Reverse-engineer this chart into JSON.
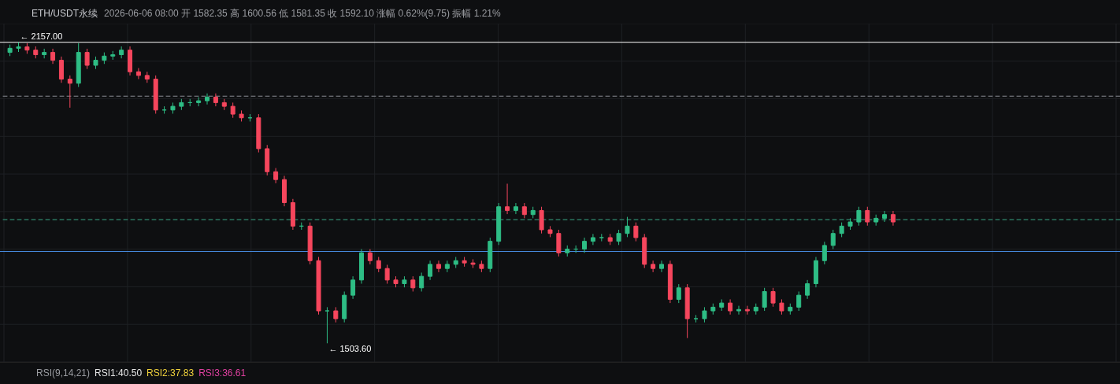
{
  "chart_data": {
    "type": "candlestick",
    "title": "ETH/USDT永续",
    "subtitle": "2026-06-06 08:00 开 1582.35 高 1600.56 低 1581.35 收 1592.10 涨幅 0.62%(9.75) 振幅 1.21%",
    "categories": [
      null,
      null,
      null,
      null,
      null,
      null,
      null,
      null,
      null,
      null,
      null,
      null,
      null,
      null,
      null,
      null,
      null,
      null,
      null,
      null,
      null,
      null,
      null,
      null,
      null,
      null,
      null,
      null,
      null,
      null,
      null,
      null,
      null,
      null,
      null,
      null,
      null,
      null,
      null,
      null,
      null,
      null,
      null,
      null,
      null,
      null,
      null,
      null,
      null,
      null,
      null,
      null,
      null,
      null,
      null,
      null,
      null,
      null,
      null,
      null,
      null,
      null,
      null,
      null,
      null,
      null,
      null,
      null,
      null,
      null,
      null,
      null,
      null,
      null,
      null,
      null,
      null,
      null,
      null,
      null,
      null,
      null,
      null,
      null,
      null,
      null,
      null,
      null,
      null,
      null,
      null,
      null,
      null,
      null,
      null,
      null,
      null,
      null,
      null,
      null,
      null,
      null,
      null,
      null
    ],
    "ohlc": [
      [
        2135,
        2152,
        2127,
        2144
      ],
      [
        2144,
        2157,
        2136,
        2147
      ],
      [
        2147,
        2155,
        2132,
        2140
      ],
      [
        2140,
        2148,
        2122,
        2130
      ],
      [
        2130,
        2143,
        2122,
        2135
      ],
      [
        2135,
        2143,
        2110,
        2118
      ],
      [
        2118,
        2126,
        2069,
        2077
      ],
      [
        2077,
        2085,
        2015,
        2068
      ],
      [
        2068,
        2155,
        2060,
        2135
      ],
      [
        2135,
        2143,
        2099,
        2107
      ],
      [
        2107,
        2126,
        2099,
        2118
      ],
      [
        2118,
        2135,
        2110,
        2127
      ],
      [
        2127,
        2138,
        2119,
        2130
      ],
      [
        2130,
        2148,
        2122,
        2140
      ],
      [
        2140,
        2148,
        2085,
        2093
      ],
      [
        2093,
        2101,
        2077,
        2085
      ],
      [
        2085,
        2093,
        2069,
        2077
      ],
      [
        2077,
        2085,
        2002,
        2010
      ],
      [
        2010,
        2018,
        2002,
        2010
      ],
      [
        2010,
        2026,
        2002,
        2018
      ],
      [
        2018,
        2034,
        2010,
        2026
      ],
      [
        2026,
        2034,
        2018,
        2026
      ],
      [
        2026,
        2038,
        2018,
        2030
      ],
      [
        2030,
        2046,
        2022,
        2038
      ],
      [
        2038,
        2046,
        2018,
        2026
      ],
      [
        2026,
        2034,
        2010,
        2018
      ],
      [
        2018,
        2026,
        1993,
        2001
      ],
      [
        2001,
        2009,
        1985,
        1993
      ],
      [
        1993,
        2001,
        1985,
        1993
      ],
      [
        1993,
        2001,
        1918,
        1926
      ],
      [
        1926,
        1934,
        1868,
        1876
      ],
      [
        1876,
        1884,
        1851,
        1859
      ],
      [
        1859,
        1867,
        1801,
        1809
      ],
      [
        1809,
        1817,
        1750,
        1758
      ],
      [
        1758,
        1766,
        1750,
        1758
      ],
      [
        1758,
        1766,
        1675,
        1683
      ],
      [
        1683,
        1691,
        1566,
        1574
      ],
      [
        1574,
        1582,
        1503.6,
        1574
      ],
      [
        1574,
        1582,
        1549,
        1557
      ],
      [
        1557,
        1616,
        1549,
        1608
      ],
      [
        1608,
        1649,
        1600,
        1641
      ],
      [
        1641,
        1708,
        1633,
        1700
      ],
      [
        1700,
        1708,
        1675,
        1683
      ],
      [
        1683,
        1691,
        1658,
        1666
      ],
      [
        1666,
        1674,
        1633,
        1641
      ],
      [
        1641,
        1649,
        1625,
        1633
      ],
      [
        1633,
        1649,
        1625,
        1641
      ],
      [
        1641,
        1649,
        1616,
        1624
      ],
      [
        1624,
        1657,
        1616,
        1649
      ],
      [
        1649,
        1683,
        1641,
        1675
      ],
      [
        1675,
        1683,
        1658,
        1666
      ],
      [
        1666,
        1683,
        1658,
        1675
      ],
      [
        1675,
        1691,
        1667,
        1683
      ],
      [
        1683,
        1691,
        1670,
        1678
      ],
      [
        1678,
        1686,
        1667,
        1675
      ],
      [
        1675,
        1683,
        1658,
        1666
      ],
      [
        1666,
        1733,
        1658,
        1725
      ],
      [
        1725,
        1808,
        1717,
        1800
      ],
      [
        1800,
        1850,
        1784,
        1792
      ],
      [
        1792,
        1808,
        1784,
        1800
      ],
      [
        1800,
        1808,
        1775,
        1783
      ],
      [
        1783,
        1800,
        1775,
        1792
      ],
      [
        1792,
        1800,
        1742,
        1750
      ],
      [
        1750,
        1758,
        1734,
        1742
      ],
      [
        1742,
        1750,
        1692,
        1700
      ],
      [
        1700,
        1716,
        1692,
        1708
      ],
      [
        1708,
        1716,
        1700,
        1708
      ],
      [
        1708,
        1733,
        1700,
        1725
      ],
      [
        1725,
        1741,
        1717,
        1733
      ],
      [
        1733,
        1741,
        1725,
        1733
      ],
      [
        1733,
        1741,
        1717,
        1725
      ],
      [
        1725,
        1750,
        1717,
        1742
      ],
      [
        1742,
        1778,
        1734,
        1758
      ],
      [
        1758,
        1766,
        1725,
        1733
      ],
      [
        1733,
        1741,
        1667,
        1675
      ],
      [
        1675,
        1683,
        1658,
        1666
      ],
      [
        1666,
        1683,
        1658,
        1675
      ],
      [
        1675,
        1683,
        1591,
        1599
      ],
      [
        1599,
        1632,
        1591,
        1624
      ],
      [
        1624,
        1632,
        1515,
        1557
      ],
      [
        1557,
        1565,
        1549,
        1557
      ],
      [
        1557,
        1582,
        1549,
        1574
      ],
      [
        1574,
        1590,
        1566,
        1582
      ],
      [
        1582,
        1599,
        1574,
        1591
      ],
      [
        1591,
        1599,
        1566,
        1574
      ],
      [
        1574,
        1585,
        1566,
        1577
      ],
      [
        1577,
        1585,
        1566,
        1574
      ],
      [
        1574,
        1590,
        1566,
        1582
      ],
      [
        1582,
        1624,
        1574,
        1616
      ],
      [
        1616,
        1624,
        1583,
        1591
      ],
      [
        1591,
        1599,
        1566,
        1574
      ],
      [
        1574,
        1590,
        1566,
        1582
      ],
      [
        1582,
        1616,
        1574,
        1608
      ],
      [
        1608,
        1641,
        1600,
        1633
      ],
      [
        1633,
        1691,
        1625,
        1683
      ],
      [
        1683,
        1724,
        1675,
        1716
      ],
      [
        1716,
        1750,
        1708,
        1742
      ],
      [
        1742,
        1766,
        1734,
        1758
      ],
      [
        1758,
        1775,
        1750,
        1767
      ],
      [
        1767,
        1800,
        1759,
        1792
      ],
      [
        1792,
        1800,
        1759,
        1767
      ],
      [
        1767,
        1783,
        1759,
        1775
      ],
      [
        1775,
        1791,
        1767,
        1783
      ],
      [
        1783,
        1791,
        1759,
        1767
      ]
    ],
    "ref_lines": [
      {
        "axis": "y",
        "value": 2157,
        "color": "#ffffff",
        "line_style": "solid"
      },
      {
        "axis": "y",
        "value": 2040,
        "color": "#8a8d93",
        "line_style": "dashed"
      },
      {
        "axis": "y",
        "value": 1772,
        "color": "#3aa888",
        "line_style": "dashed"
      },
      {
        "axis": "y",
        "value": 1703,
        "color": "#4a8fe7",
        "line_style": "solid"
      }
    ],
    "annotations": [
      "← 2157.00",
      "← 1503.60",
      "RSI(9,14,21)",
      "RSI1:40.50",
      "RSI2:37.83",
      "RSI3:36.61"
    ],
    "grid": true
  }
}
